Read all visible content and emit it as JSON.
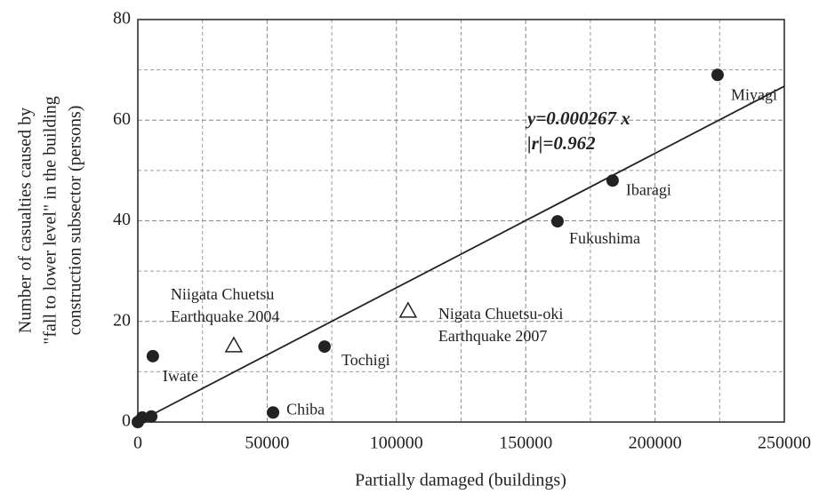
{
  "chart_data": {
    "type": "scatter",
    "xlabel": "Partially damaged (buildings)",
    "ylabel": [
      "Number of casualties caused by",
      "\"fall to lower level\" in the building",
      "construction subsector (persons)"
    ],
    "xlim": [
      0,
      250000
    ],
    "ylim": [
      0,
      80
    ],
    "xticks": [
      0,
      50000,
      100000,
      150000,
      200000,
      250000
    ],
    "yticks": [
      0,
      20,
      40,
      60,
      80
    ],
    "minor_xticks": [
      25000,
      75000,
      125000,
      175000,
      225000
    ],
    "minor_yticks": [
      10,
      30,
      50,
      70
    ],
    "grid": true,
    "series": [
      {
        "marker": "circle",
        "color": "#222222",
        "x": [
          224200,
          183600,
          162300,
          72200,
          52300,
          5800,
          0,
          1700,
          5200
        ],
        "values": [
          69.0,
          48.0,
          39.9,
          15.0,
          1.9,
          13.1,
          0,
          0.9,
          1.1
        ],
        "labels": [
          [
            "Miyagi"
          ],
          [
            "Ibaragi"
          ],
          [
            "Fukushima"
          ],
          [
            "Tochigi"
          ],
          [
            "Chiba"
          ],
          [
            "Iwate"
          ],
          null,
          null,
          null
        ]
      },
      {
        "marker": "triangle",
        "color": "#222222",
        "x": [
          37100,
          104500
        ],
        "values": [
          15.2,
          22.1
        ],
        "labels": [
          [
            "Niigata Chuetsu",
            "Earthquake 2004"
          ],
          [
            "Nigata Chuetsu-oki",
            "Earthquake 2007"
          ]
        ]
      }
    ],
    "trendline": {
      "slope": 0.000267
    },
    "annotation": [
      "y=0.000267 x",
      "|r|=0.962"
    ]
  }
}
